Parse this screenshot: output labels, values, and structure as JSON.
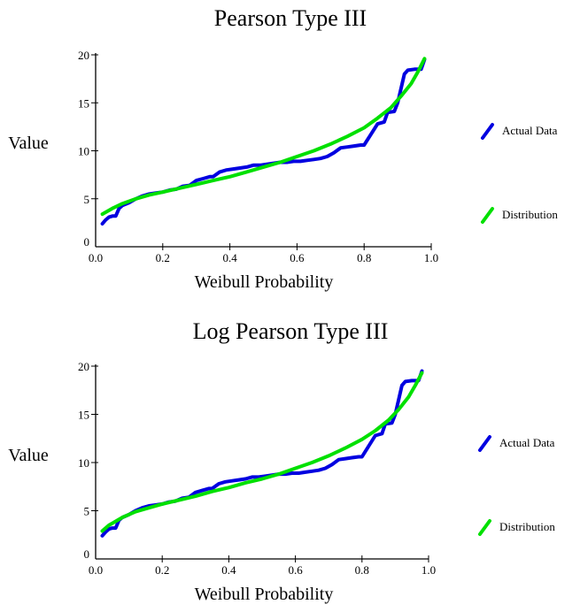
{
  "colors": {
    "actual": "#0000e0",
    "distribution": "#00e000",
    "axis": "#000000"
  },
  "chart_data": [
    {
      "type": "line",
      "title": "Pearson Type III",
      "xlabel": "Weibull Probability",
      "ylabel": "Value",
      "xlim": [
        0,
        1
      ],
      "ylim": [
        0,
        20
      ],
      "xticks": [
        "0.0",
        "0.2",
        "0.4",
        "0.6",
        "0.8",
        "1.0"
      ],
      "yticks": [
        "0",
        "5",
        "10",
        "15",
        "20"
      ],
      "grid": false,
      "legend": "right",
      "series": [
        {
          "name": "Actual Data",
          "x": [
            0.02,
            0.03,
            0.04,
            0.05,
            0.06,
            0.07,
            0.08,
            0.1,
            0.12,
            0.14,
            0.16,
            0.18,
            0.2,
            0.22,
            0.24,
            0.26,
            0.28,
            0.3,
            0.32,
            0.34,
            0.35,
            0.37,
            0.39,
            0.41,
            0.43,
            0.45,
            0.47,
            0.49,
            0.51,
            0.53,
            0.55,
            0.57,
            0.59,
            0.61,
            0.63,
            0.65,
            0.67,
            0.69,
            0.71,
            0.73,
            0.75,
            0.77,
            0.79,
            0.8,
            0.82,
            0.84,
            0.86,
            0.87,
            0.89,
            0.9,
            0.92,
            0.93,
            0.95,
            0.97,
            0.98
          ],
          "y": [
            2.4,
            2.8,
            3.1,
            3.2,
            3.2,
            4.0,
            4.3,
            4.6,
            5.0,
            5.3,
            5.5,
            5.6,
            5.7,
            5.9,
            6.0,
            6.3,
            6.4,
            6.9,
            7.1,
            7.3,
            7.3,
            7.8,
            8.0,
            8.1,
            8.2,
            8.3,
            8.5,
            8.5,
            8.6,
            8.7,
            8.8,
            8.8,
            8.9,
            8.9,
            9.0,
            9.1,
            9.2,
            9.4,
            9.8,
            10.3,
            10.4,
            10.5,
            10.6,
            10.6,
            11.7,
            12.8,
            13.0,
            14.0,
            14.1,
            15.0,
            18.0,
            18.4,
            18.5,
            18.5,
            19.5
          ]
        },
        {
          "name": "Distribution",
          "x": [
            0.02,
            0.05,
            0.08,
            0.12,
            0.16,
            0.2,
            0.25,
            0.3,
            0.35,
            0.4,
            0.45,
            0.5,
            0.55,
            0.6,
            0.65,
            0.7,
            0.75,
            0.8,
            0.84,
            0.88,
            0.91,
            0.94,
            0.96,
            0.98
          ],
          "y": [
            3.4,
            4.0,
            4.5,
            5.0,
            5.4,
            5.7,
            6.1,
            6.5,
            6.9,
            7.3,
            7.8,
            8.3,
            8.8,
            9.4,
            10.0,
            10.7,
            11.5,
            12.4,
            13.4,
            14.5,
            15.7,
            17.0,
            18.2,
            19.6
          ]
        }
      ]
    },
    {
      "type": "line",
      "title": "Log Pearson Type III",
      "xlabel": "Weibull Probability",
      "ylabel": "Value",
      "xlim": [
        0,
        1
      ],
      "ylim": [
        0,
        20
      ],
      "xticks": [
        "0.0",
        "0.2",
        "0.4",
        "0.6",
        "0.8",
        "1.0"
      ],
      "yticks": [
        "0",
        "5",
        "10",
        "15",
        "20"
      ],
      "grid": false,
      "legend": "right",
      "series": [
        {
          "name": "Actual Data",
          "x": [
            0.02,
            0.03,
            0.04,
            0.05,
            0.06,
            0.07,
            0.08,
            0.1,
            0.12,
            0.14,
            0.16,
            0.18,
            0.2,
            0.22,
            0.24,
            0.26,
            0.28,
            0.3,
            0.32,
            0.34,
            0.35,
            0.37,
            0.39,
            0.41,
            0.43,
            0.45,
            0.47,
            0.49,
            0.51,
            0.53,
            0.55,
            0.57,
            0.59,
            0.61,
            0.63,
            0.65,
            0.67,
            0.69,
            0.71,
            0.73,
            0.75,
            0.77,
            0.79,
            0.8,
            0.82,
            0.84,
            0.86,
            0.87,
            0.89,
            0.9,
            0.92,
            0.93,
            0.95,
            0.97,
            0.98
          ],
          "y": [
            2.4,
            2.8,
            3.1,
            3.2,
            3.2,
            4.0,
            4.3,
            4.6,
            5.0,
            5.3,
            5.5,
            5.6,
            5.7,
            5.9,
            6.0,
            6.3,
            6.4,
            6.9,
            7.1,
            7.3,
            7.3,
            7.8,
            8.0,
            8.1,
            8.2,
            8.3,
            8.5,
            8.5,
            8.6,
            8.7,
            8.8,
            8.8,
            8.9,
            8.9,
            9.0,
            9.1,
            9.2,
            9.4,
            9.8,
            10.3,
            10.4,
            10.5,
            10.6,
            10.6,
            11.7,
            12.8,
            13.0,
            14.0,
            14.1,
            15.0,
            18.0,
            18.4,
            18.5,
            18.5,
            19.5
          ]
        },
        {
          "name": "Distribution",
          "x": [
            0.02,
            0.04,
            0.06,
            0.08,
            0.12,
            0.16,
            0.2,
            0.25,
            0.3,
            0.35,
            0.4,
            0.45,
            0.5,
            0.55,
            0.6,
            0.65,
            0.7,
            0.75,
            0.8,
            0.84,
            0.88,
            0.91,
            0.94,
            0.96,
            0.98
          ],
          "y": [
            2.9,
            3.5,
            3.9,
            4.3,
            4.9,
            5.3,
            5.7,
            6.1,
            6.5,
            7.0,
            7.4,
            7.9,
            8.3,
            8.8,
            9.4,
            10.0,
            10.7,
            11.5,
            12.4,
            13.3,
            14.4,
            15.5,
            16.8,
            18.0,
            19.3
          ]
        }
      ]
    }
  ]
}
